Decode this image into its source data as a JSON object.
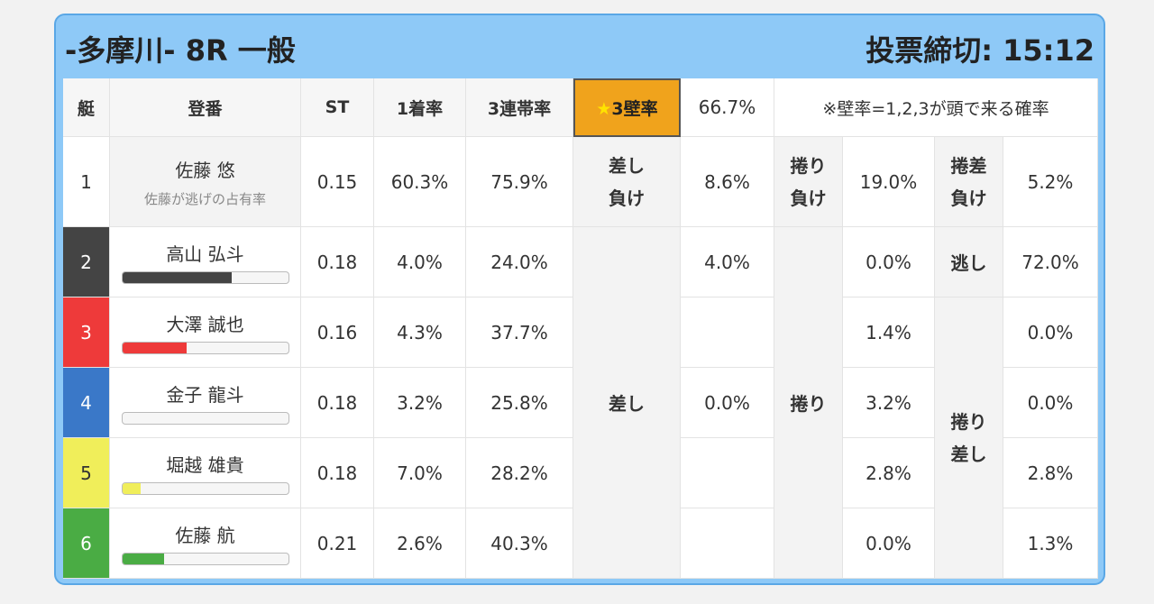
{
  "header": {
    "title": "-多摩川- 8R 一般",
    "deadline": "投票締切: 15:12"
  },
  "columns": {
    "lane": "艇",
    "racer": "登番",
    "st": "ST",
    "win_rate": "1着率",
    "top3_rate": "3連帯率",
    "wall_label": "3壁率",
    "wall_value": "66.7%",
    "wall_note": "※壁率=1,2,3が頭で来る確率"
  },
  "colors": {
    "lane1": "#ffffff",
    "lane2": "#444444",
    "lane3": "#ee3a3a",
    "lane4": "#3a78c8",
    "lane5": "#f0ee5a",
    "lane6": "#4aac44",
    "accent": "#f0a31c"
  },
  "row1": {
    "lane": "1",
    "name": "佐藤 悠",
    "sub": "佐藤が逃げの占有率",
    "st": "0.15",
    "win": "60.3%",
    "top3": "75.9%",
    "k1_line1": "差し",
    "k1_line2": "負け",
    "v1": "8.6%",
    "k2_line1": "捲り",
    "k2_line2": "負け",
    "v2": "19.0%",
    "k3_line1": "捲差",
    "k3_line2": "負け",
    "v3": "5.2%"
  },
  "racers": [
    {
      "lane": "2",
      "name": "高山 弘斗",
      "st": "0.18",
      "win": "4.0%",
      "top3": "24.0%",
      "sashi": "4.0%",
      "makuri": "0.0%",
      "other": "72.0%",
      "bar": 0.66
    },
    {
      "lane": "3",
      "name": "大澤 誠也",
      "st": "0.16",
      "win": "4.3%",
      "top3": "37.7%",
      "sashi": "",
      "makuri": "1.4%",
      "other": "0.0%",
      "bar": 0.39
    },
    {
      "lane": "4",
      "name": "金子 龍斗",
      "st": "0.18",
      "win": "3.2%",
      "top3": "25.8%",
      "sashi": "0.0%",
      "makuri": "3.2%",
      "other": "0.0%",
      "bar": 0.0
    },
    {
      "lane": "5",
      "name": "堀越 雄貴",
      "st": "0.18",
      "win": "7.0%",
      "top3": "28.2%",
      "sashi": "",
      "makuri": "2.8%",
      "other": "2.8%",
      "bar": 0.11
    },
    {
      "lane": "6",
      "name": "佐藤 航",
      "st": "0.21",
      "win": "2.6%",
      "top3": "40.3%",
      "sashi": "",
      "makuri": "0.0%",
      "other": "1.3%",
      "bar": 0.25
    }
  ],
  "labels": {
    "sashi": "差し",
    "makuri": "捲り",
    "nige": "逃し",
    "makuri_sashi_1": "捲り",
    "makuri_sashi_2": "差し"
  }
}
